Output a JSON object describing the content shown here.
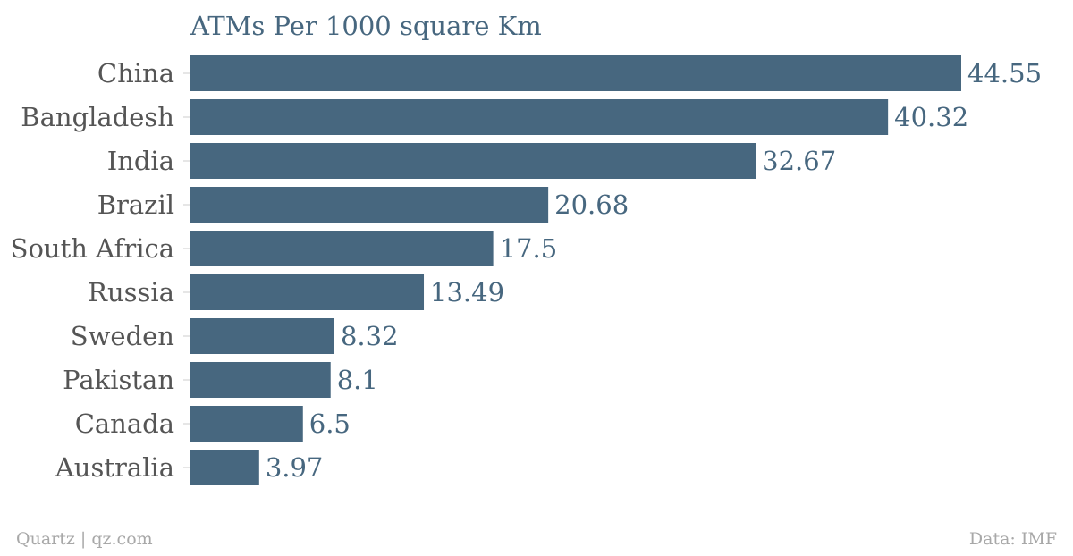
{
  "chart_data": {
    "type": "bar",
    "orientation": "horizontal",
    "title": "ATMs Per 1000 square Km",
    "xlabel": "",
    "ylabel": "",
    "xlim": [
      0,
      44.55
    ],
    "grid": false,
    "categories": [
      "China",
      "Bangladesh",
      "India",
      "Brazil",
      "South Africa",
      "Russia",
      "Sweden",
      "Pakistan",
      "Canada",
      "Australia"
    ],
    "values": [
      44.55,
      40.32,
      32.67,
      20.68,
      17.5,
      13.49,
      8.32,
      8.1,
      6.5,
      3.97
    ],
    "value_labels": [
      "44.55",
      "40.32",
      "32.67",
      "20.68",
      "17.5",
      "13.49",
      "8.32",
      "8.1",
      "6.5",
      "3.97"
    ],
    "bar_color": "#47677f",
    "label_color": "#555555",
    "value_color": "#47677f"
  },
  "footer": {
    "source_left": "Quartz | qz.com",
    "source_right": "Data: IMF"
  }
}
